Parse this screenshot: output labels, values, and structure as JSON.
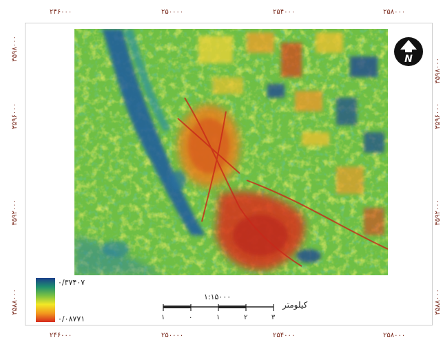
{
  "map": {
    "top_ticks": [
      "۲۴۶۰۰۰",
      "۲۵۰۰۰۰",
      "۲۵۴۰۰۰",
      "۲۵۸۰۰۰"
    ],
    "bottom_ticks": [
      "۲۴۶۰۰۰",
      "۲۵۰۰۰۰",
      "۲۵۴۰۰۰",
      "۲۵۸۰۰۰"
    ],
    "left_ticks": [
      "۳۵۹۸۰۰۰",
      "۳۵۹۶۰۰۰",
      "۳۵۹۲۰۰۰",
      "۳۵۸۸۰۰۰"
    ],
    "right_ticks": [
      "۳۵۹۸۰۰۰",
      "۳۵۹۶۰۰۰",
      "۳۵۹۲۰۰۰",
      "۳۵۸۸۰۰۰"
    ],
    "north_label": "N",
    "legend": {
      "max": "۰/۳۷۴۰۷",
      "min": "۰/۰۸۷۷۱"
    },
    "scale": {
      "ratio": "۱:۱۵۰۰۰",
      "unit": "کیلومتر",
      "labels": [
        "۱",
        "۰",
        "۱",
        "۲",
        "۳"
      ]
    },
    "colors": {
      "low": "#1a3f8a",
      "mid": "#7ac143",
      "high": "#f2e826",
      "peak": "#d62a1d"
    }
  }
}
